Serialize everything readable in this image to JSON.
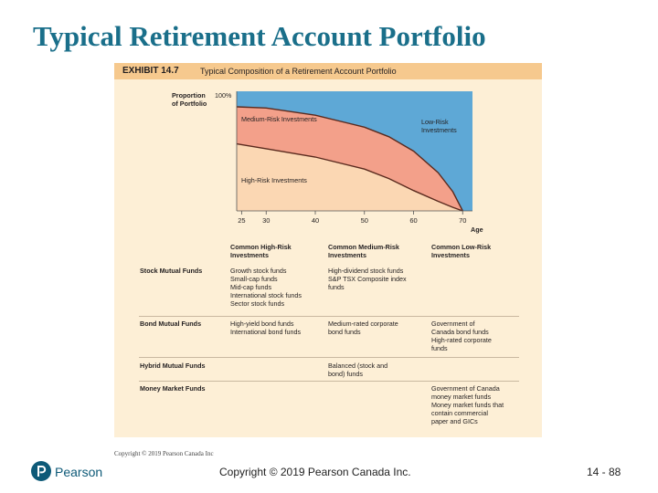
{
  "slide": {
    "title": "Typical Retirement Account Portfolio",
    "copyright_small": "Copyright © 2019 Pearson Canada Inc",
    "footer_brand": "Pearson",
    "footer_copyright": "Copyright © 2019 Pearson Canada Inc.",
    "page_number": "14 - 88"
  },
  "exhibit": {
    "number": "EXHIBIT 14.7",
    "title": "Typical Composition of a Retirement Account Portfolio",
    "colors": {
      "header": "#f6c98e",
      "background": "#fdefd6",
      "low": "#5ea8d6",
      "medium": "#f3a08a",
      "high": "#fbd7b3"
    }
  },
  "chart_data": {
    "type": "area",
    "title": "Typical Composition of a Retirement Account Portfolio",
    "ylabel_lines": [
      "Proportion",
      "of Portfolio"
    ],
    "y_top_label": "100%",
    "xlabel": "Age",
    "x_ticks": [
      25,
      30,
      40,
      50,
      60,
      70
    ],
    "xlim": [
      24,
      72
    ],
    "ylim": [
      0,
      100
    ],
    "series": [
      {
        "name": "High-Risk Investments",
        "label_lines": [
          "High-Risk Investments"
        ],
        "x": [
          24,
          30,
          40,
          50,
          55,
          60,
          65,
          68,
          70
        ],
        "upper": [
          56,
          52,
          45,
          35,
          27,
          17,
          8,
          3,
          0
        ]
      },
      {
        "name": "Medium-Risk Investments",
        "label_lines": [
          "Medium-Risk Investments"
        ],
        "x": [
          24,
          30,
          40,
          50,
          55,
          60,
          65,
          68,
          70
        ],
        "upper": [
          87,
          86,
          80,
          70,
          62,
          50,
          32,
          16,
          0
        ]
      },
      {
        "name": "Low-Risk Investments",
        "label_lines": [
          "Low-Risk",
          "Investments"
        ],
        "x": [
          24,
          72
        ],
        "upper": [
          100,
          100
        ]
      }
    ]
  },
  "table": {
    "columns": [
      [
        "Common High-Risk",
        "Investments"
      ],
      [
        "Common Medium-Risk",
        "Investments"
      ],
      [
        "Common Low-Risk",
        "Investments"
      ]
    ],
    "rows": [
      {
        "label": "Stock Mutual Funds",
        "cells": [
          [
            "Growth stock funds",
            "Small-cap funds",
            "Mid-cap funds",
            "International stock funds",
            "Sector stock funds"
          ],
          [
            "High-dividend stock funds",
            "S&P TSX Composite index",
            "  funds"
          ],
          []
        ]
      },
      {
        "label": "Bond Mutual Funds",
        "cells": [
          [
            "High-yield bond funds",
            "International bond funds"
          ],
          [
            "Medium-rated corporate",
            "  bond funds"
          ],
          [
            "Government of",
            "  Canada bond funds",
            "High-rated corporate",
            "  funds"
          ]
        ]
      },
      {
        "label": "Hybrid Mutual Funds",
        "cells": [
          [],
          [
            "Balanced (stock and",
            "  bond) funds"
          ],
          []
        ]
      },
      {
        "label": "Money Market Funds",
        "cells": [
          [],
          [],
          [
            "Government of Canada",
            "  money market funds",
            "Money market funds that",
            "  contain commercial",
            "  paper and GICs"
          ]
        ]
      }
    ]
  }
}
